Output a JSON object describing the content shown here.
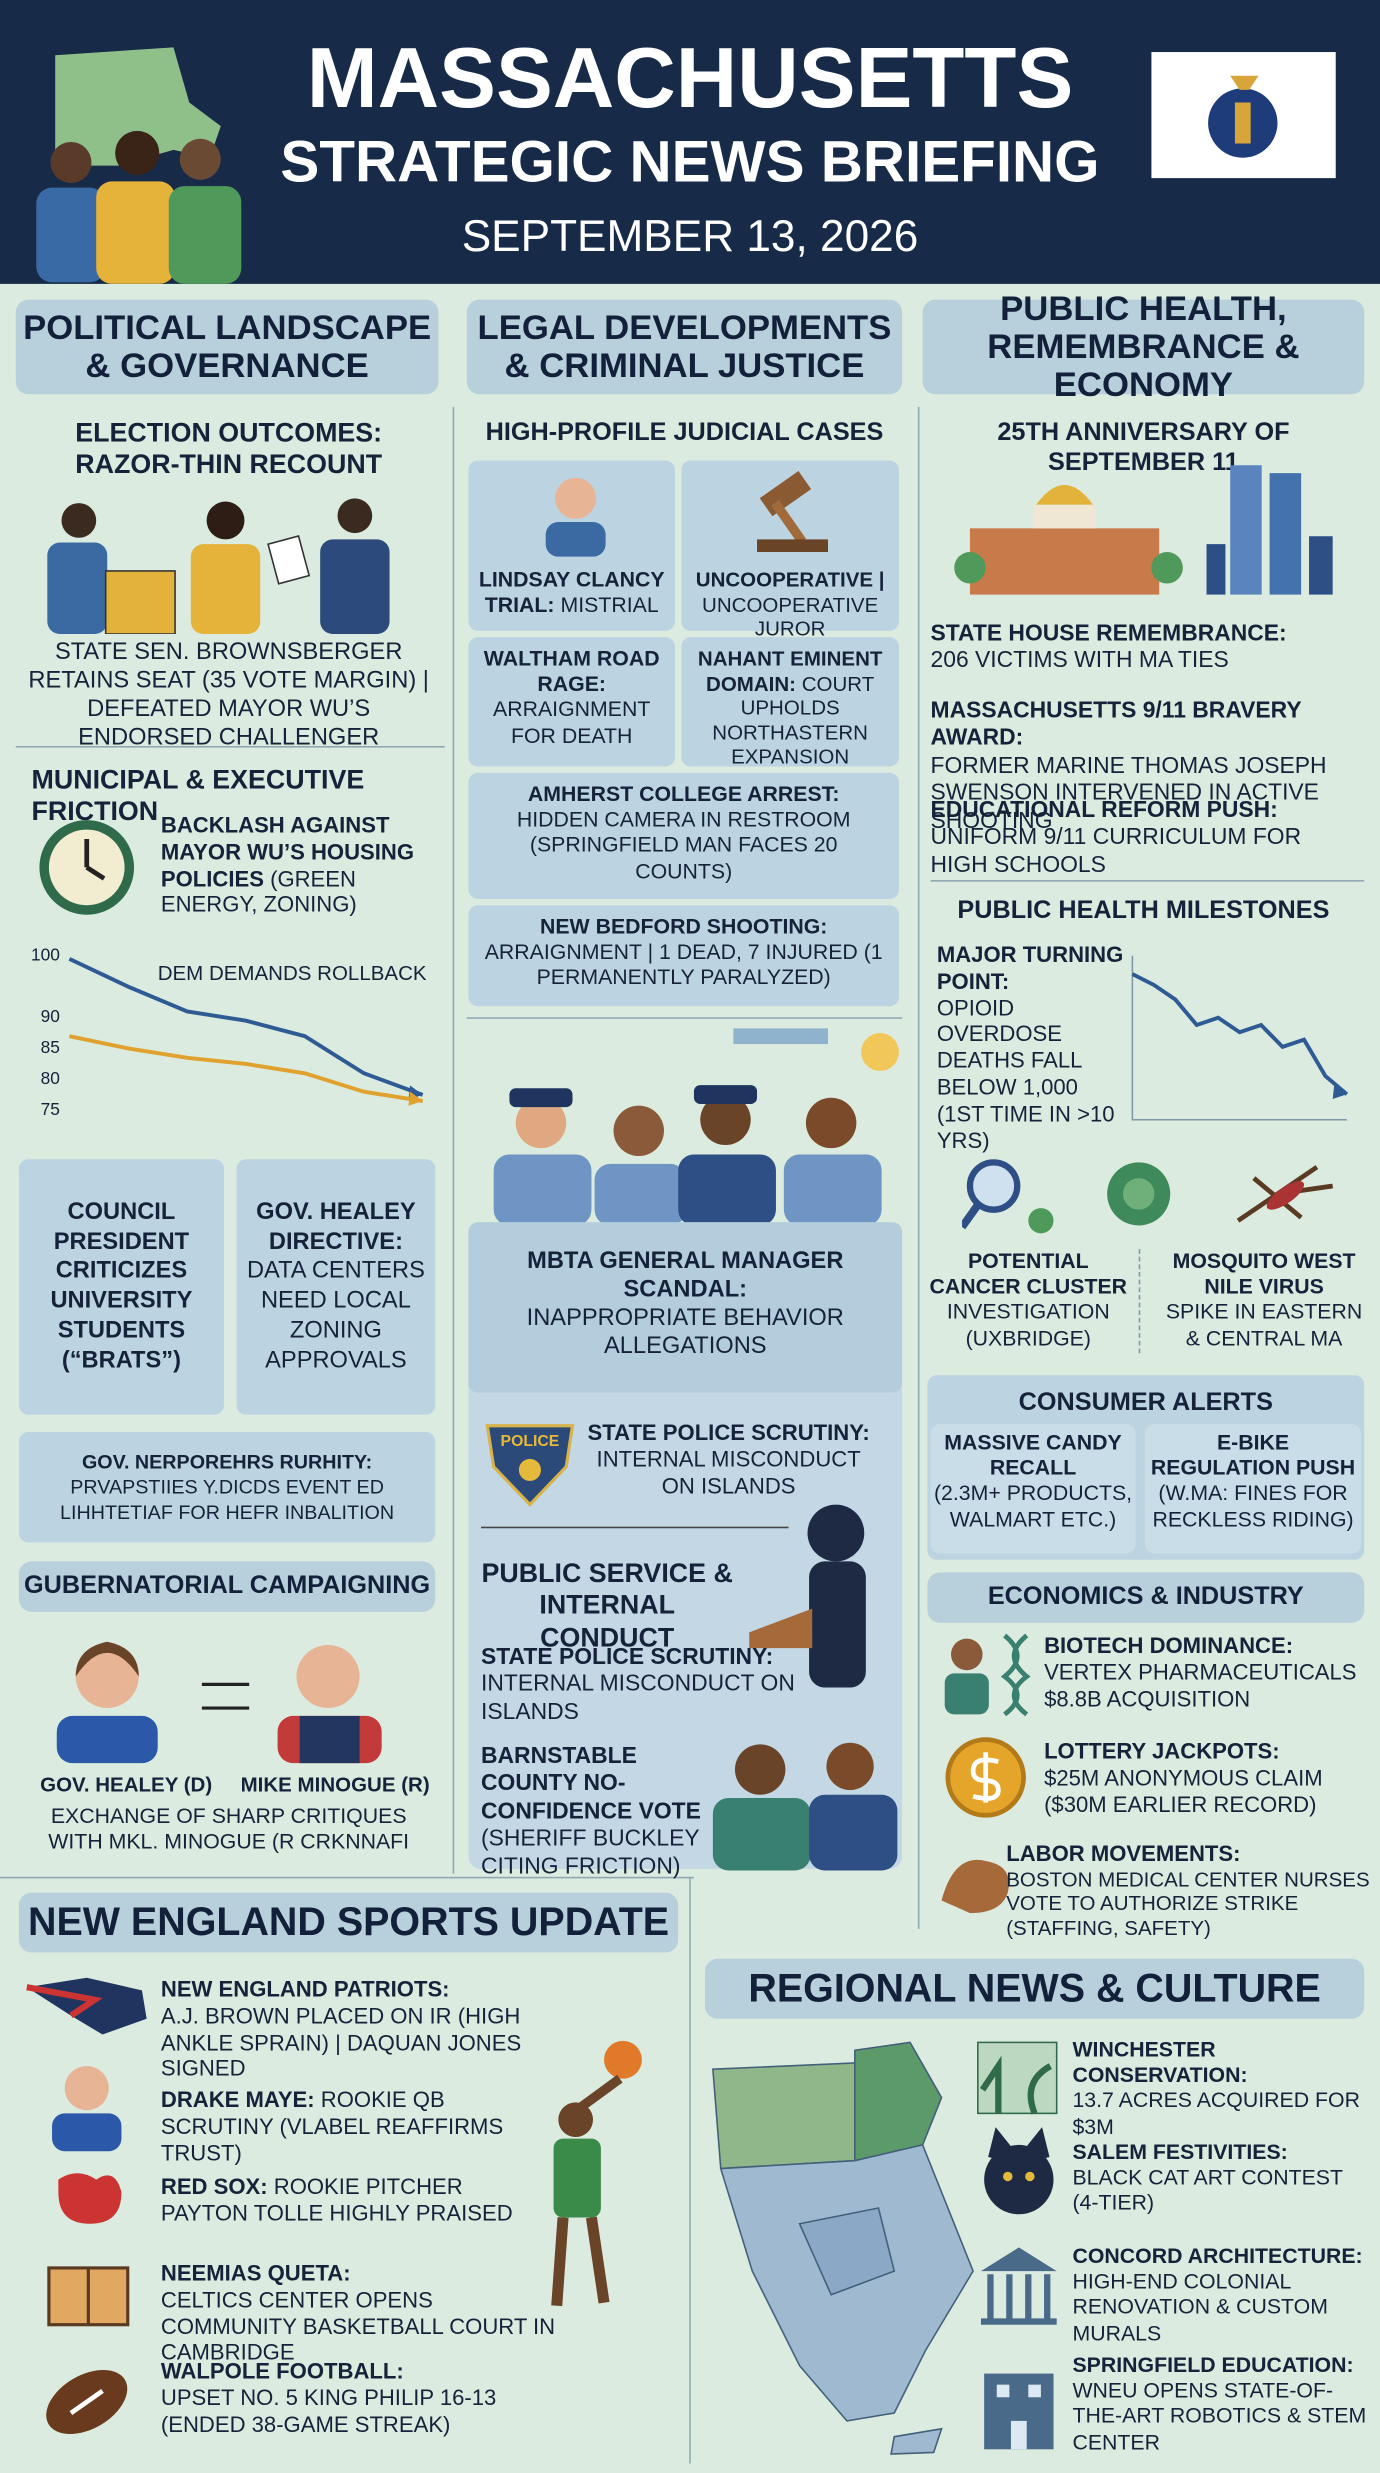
{
  "header": {
    "title": "MASSACHUSETTS",
    "subtitle": "STRATEGIC NEWS BRIEFING",
    "date": "SEPTEMBER 13, 2026"
  },
  "political": {
    "heading": "POLITICAL LANDSCAPE & GOVERNANCE",
    "election_title": "ELECTION OUTCOMES: RAZOR-THIN RECOUNT",
    "election_text": "STATE SEN. BROWNSBERGER RETAINS SEAT (35 VOTE MARGIN) | DEFEATED MAYOR WU’S ENDORSED CHALLENGER",
    "municipal_title": "MUNICIPAL & EXECUTIVE FRICTION",
    "backlash_title": "BACKLASH AGAINST MAYOR WU’S HOUSING POLICIES",
    "backlash_text": "(GREEN ENERGY, ZONING)",
    "council": "COUNCIL PRESIDENT CRITICIZES UNIVERSITY STUDENTS (“BRATS”)",
    "directive_title": "GOV. HEALEY DIRECTIVE:",
    "directive_text": "DATA CENTERS NEED LOCAL ZONING APPROVALS",
    "garbled_title": "GOV. NERPOREHRS RURHITY:",
    "garbled_text": "PRVAPSTIIES Y.DICDS EVENT ED LIHHTETIAF FOR HEFR INBALITION",
    "campaign_title": "GUBERNATORIAL CAMPAIGNING",
    "candidate_1": "GOV. HEALEY (D)",
    "candidate_2": "MIKE MINOGUE (R)",
    "campaign_text": "EXCHANGE OF SHARP CRITIQUES WITH MKL. MINOGUE (R CRKNNAFI"
  },
  "legal": {
    "heading": "LEGAL DEVELOPMENTS & CRIMINAL JUSTICE",
    "cases_title": "HIGH-PROFILE JUDICIAL CASES",
    "cases": [
      {
        "title": "LINDSAY CLANCY TRIAL:",
        "text": "MISTRIAL"
      },
      {
        "title": "UNCOOPERATIVE |",
        "text": "UNCOOPERATIVE JUROR"
      },
      {
        "title": "WALTHAM ROAD RAGE:",
        "text": "ARRAIGNMENT FOR DEATH"
      },
      {
        "title": "NAHANT EMINENT DOMAIN:",
        "text": "COURT UPHOLDS NORTHASTERN EXPANSION"
      },
      {
        "title": "AMHERST COLLEGE ARREST:",
        "text": "HIDDEN CAMERA IN RESTROOM (SPRINGFIELD MAN FACES 20 COUNTS)"
      },
      {
        "title": "NEW BEDFORD SHOOTING:",
        "text": "ARRAIGNMENT | 1 DEAD, 7 INJURED (1 PERMANENTLY PARALYZED)"
      }
    ],
    "mbta_title": "MBTA GENERAL MANAGER SCANDAL:",
    "mbta_text": "INAPPROPRIATE BEHAVIOR ALLEGATIONS",
    "badge": "POLICE",
    "police_title": "STATE POLICE SCRUTINY:",
    "police_text": "INTERNAL MISCONDUCT ON ISLANDS",
    "service_title": "PUBLIC SERVICE & INTERNAL CONDUCT",
    "police2_title": "STATE POLICE SCRUTINY:",
    "police2_text": "INTERNAL MISCONDUCT ON ISLANDS",
    "barnstable_title": "BARNSTABLE COUNTY NO-CONFIDENCE VOTE",
    "barnstable_text": "(SHERIFF BUCKLEY CITING FRICTION)"
  },
  "health": {
    "heading": "PUBLIC HEALTH, REMEMBRANCE & ECONOMY",
    "anniversary_title": "25TH ANNIVERSARY OF SEPTEMBER 11",
    "items": [
      {
        "title": "STATE HOUSE REMEMBRANCE:",
        "text": "206 VICTIMS WITH MA TIES"
      },
      {
        "title": "MASSACHUSETTS 9/11 BRAVERY AWARD:",
        "text": "FORMER MARINE THOMAS JOSEPH SWENSON INTERVENED IN ACTIVE SHOOTING"
      },
      {
        "title": "EDUCATIONAL REFORM PUSH:",
        "text": "UNIFORM 9/11 CURRICULUM FOR HIGH SCHOOLS"
      }
    ],
    "milestones_title": "PUBLIC HEALTH MILESTONES",
    "opioid_title": "MAJOR TURNING POINT:",
    "opioid_text": "OPIOID OVERDOSE DEATHS FALL BELOW 1,000 (1ST TIME IN >10 YRS)",
    "cancer_title": "POTENTIAL CANCER CLUSTER",
    "cancer_text": "INVESTIGATION (UXBRIDGE)",
    "mosquito_title": "MOSQUITO WEST NILE VIRUS",
    "mosquito_text": "SPIKE IN EASTERN & CENTRAL MA",
    "consumer_title": "CONSUMER ALERTS",
    "recall_title": "MASSIVE CANDY RECALL",
    "recall_text": "(2.3M+ PRODUCTS, WALMART ETC.)",
    "ebike_title": "E-BIKE REGULATION PUSH",
    "ebike_text": "(W.MA: FINES FOR RECKLESS RIDING)",
    "economics_title": "ECONOMICS & INDUSTRY",
    "economics": [
      {
        "title": "BIOTECH DOMINANCE:",
        "text": "VERTEX PHARMACEUTICALS $8.8B ACQUISITION"
      },
      {
        "title": "LOTTERY JACKPOTS:",
        "text": "$25M ANONYMOUS CLAIM ($30M EARLIER RECORD)"
      },
      {
        "title": "LABOR MOVEMENTS:",
        "text": "BOSTON MEDICAL CENTER NURSES VOTE TO AUTHORIZE STRIKE (STAFFING, SAFETY)"
      }
    ]
  },
  "sports": {
    "heading": "NEW ENGLAND SPORTS UPDATE",
    "items": [
      {
        "title": "NEW ENGLAND PATRIOTS:",
        "text": "A.J. BROWN PLACED ON IR (HIGH ANKLE SPRAIN) | DAQUAN JONES SIGNED"
      },
      {
        "title": "DRAKE MAYE:",
        "text": "ROOKIE QB SCRUTINY (VLABEL REAFFIRMS TRUST)"
      },
      {
        "title": "RED SOX:",
        "text": "ROOKIE PITCHER PAYTON TOLLE HIGHLY PRAISED"
      },
      {
        "title": "NEEMIAS QUETA:",
        "text": "CELTICS CENTER OPENS COMMUNITY BASKETBALL COURT IN CAMBRIDGE"
      },
      {
        "title": "WALPOLE FOOTBALL:",
        "text": "UPSET NO. 5 KING PHILIP 16-13 (ENDED 38-GAME STREAK)"
      }
    ]
  },
  "regional": {
    "heading": "REGIONAL NEWS & CULTURE",
    "items": [
      {
        "title": "WINCHESTER CONSERVATION:",
        "text": "13.7 ACRES ACQUIRED FOR $3M"
      },
      {
        "title": "SALEM FESTIVITIES:",
        "text": "BLACK CAT ART CONTEST (4-TIER)"
      },
      {
        "title": "CONCORD ARCHITECTURE:",
        "text": "HIGH-END COLONIAL RENOVATION & CUSTOM MURALS"
      },
      {
        "title": "SPRINGFIELD EDUCATION:",
        "text": "WNEU OPENS STATE-OF-THE-ART ROBOTICS & STEM CENTER"
      }
    ]
  },
  "chart_data": [
    {
      "type": "line",
      "title": "DEM DEMANDS ROLLBACK",
      "categories": [
        null,
        null,
        null,
        null,
        null,
        null,
        null
      ],
      "series": [
        {
          "color": "#2f5b95",
          "values": [
            99.5,
            95,
            91,
            89.5,
            87,
            81,
            77.5
          ]
        },
        {
          "color": "#e0a12e",
          "values": [
            87,
            85,
            83.5,
            82.5,
            81,
            78,
            76.5
          ]
        }
      ],
      "ylim": [
        75,
        100
      ],
      "yticks": [
        100,
        90,
        85,
        80,
        75
      ],
      "grid": false
    },
    {
      "type": "line",
      "categories": [
        null,
        null,
        null,
        null,
        null,
        null,
        null,
        null,
        null,
        null,
        null
      ],
      "series": [
        {
          "color": "#2f5b95",
          "values": [
            100,
            97,
            93,
            86,
            88,
            84,
            86,
            80,
            82,
            72,
            67
          ]
        }
      ],
      "ylim": [
        60,
        105
      ],
      "grid": false
    }
  ]
}
